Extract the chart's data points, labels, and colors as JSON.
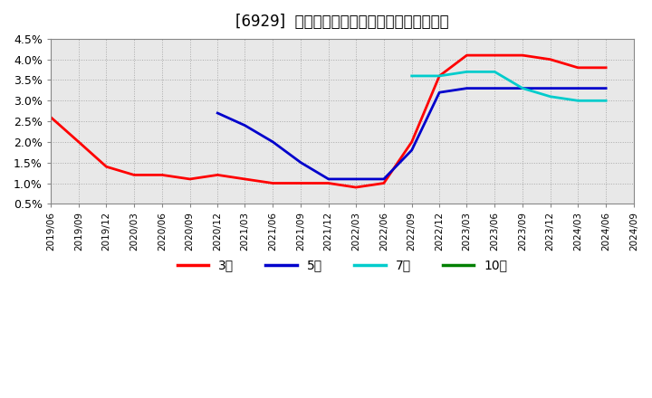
{
  "title": "[6929]  当期純利益マージンの標準偏差の推移",
  "title_fontsize": 12,
  "background_color": "#ffffff",
  "plot_bg_color": "#e8e8e8",
  "grid_color": "#aaaaaa",
  "ylim": [
    0.005,
    0.045
  ],
  "yticks": [
    0.005,
    0.01,
    0.015,
    0.02,
    0.025,
    0.03,
    0.035,
    0.04,
    0.045
  ],
  "ytick_labels": [
    "0.5%",
    "1.0%",
    "1.5%",
    "2.0%",
    "2.5%",
    "3.0%",
    "3.5%",
    "4.0%",
    "4.5%"
  ],
  "legend_labels": [
    "3年",
    "5年",
    "7年",
    "10年"
  ],
  "legend_colors": [
    "#ff0000",
    "#0000cc",
    "#00cccc",
    "#008000"
  ],
  "series": {
    "3year": {
      "color": "#ff0000",
      "dates": [
        "2019-06",
        "2019-09",
        "2019-12",
        "2020-03",
        "2020-06",
        "2020-09",
        "2020-12",
        "2021-03",
        "2021-06",
        "2021-09",
        "2021-12",
        "2022-03",
        "2022-06",
        "2022-09",
        "2022-12",
        "2023-03",
        "2023-06",
        "2023-09",
        "2023-12",
        "2024-03",
        "2024-06"
      ],
      "values": [
        0.026,
        0.02,
        0.014,
        0.012,
        0.012,
        0.011,
        0.012,
        0.011,
        0.01,
        0.01,
        0.01,
        0.009,
        0.01,
        0.02,
        0.036,
        0.041,
        0.041,
        0.041,
        0.04,
        0.038,
        0.038
      ]
    },
    "5year": {
      "color": "#0000cc",
      "dates": [
        "2020-12",
        "2021-03",
        "2021-06",
        "2021-09",
        "2021-12",
        "2022-03",
        "2022-06",
        "2022-09",
        "2022-12",
        "2023-03",
        "2023-06",
        "2023-09",
        "2023-12",
        "2024-03",
        "2024-06"
      ],
      "values": [
        0.027,
        0.024,
        0.02,
        0.015,
        0.011,
        0.011,
        0.011,
        0.018,
        0.032,
        0.033,
        0.033,
        0.033,
        0.033,
        0.033,
        0.033
      ]
    },
    "7year": {
      "color": "#00cccc",
      "dates": [
        "2022-09",
        "2022-12",
        "2023-03",
        "2023-06",
        "2023-09",
        "2023-12",
        "2024-03",
        "2024-06"
      ],
      "values": [
        0.036,
        0.036,
        0.037,
        0.037,
        0.033,
        0.031,
        0.03,
        0.03
      ]
    },
    "10year": {
      "color": "#008000",
      "dates": [],
      "values": []
    }
  }
}
